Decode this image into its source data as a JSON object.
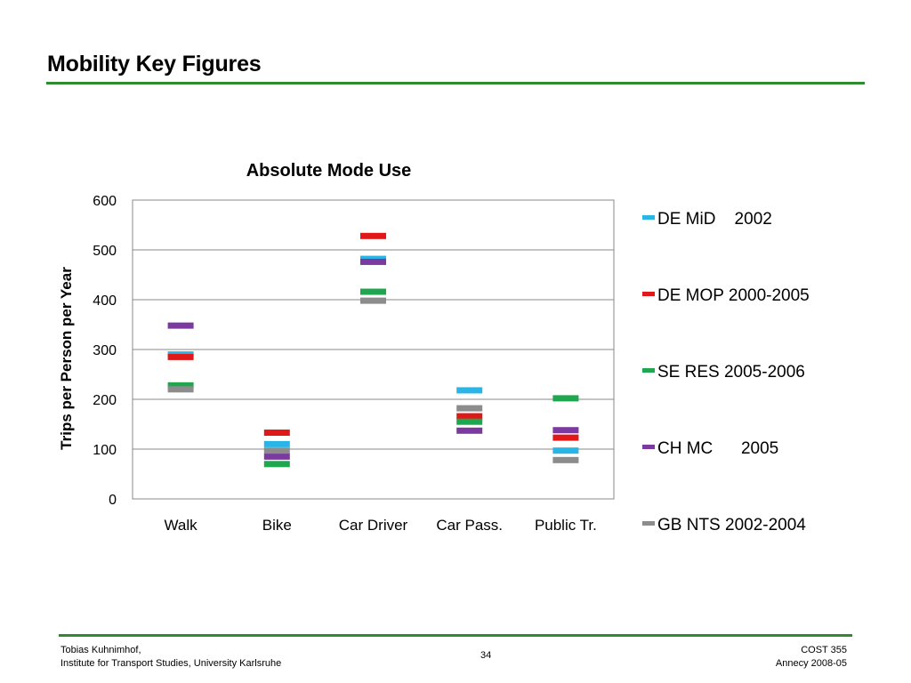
{
  "slide": {
    "title": "Mobility Key Figures",
    "footer": {
      "author": "Tobias Kuhnimhof,",
      "institute": "Institute for Transport Studies, University Karlsruhe",
      "page_number": "34",
      "project": "COST 355",
      "event": "Annecy 2008-05"
    },
    "accent_color": "#2e8b2e"
  },
  "chart_data": {
    "type": "scatter",
    "title": "Absolute Mode Use",
    "xlabel": "",
    "ylabel": "Trips per Person per Year",
    "categories": [
      "Walk",
      "Bike",
      "Car Driver",
      "Car Pass.",
      "Public Tr."
    ],
    "ylim": [
      0,
      600
    ],
    "yticks": [
      "0",
      "100",
      "200",
      "300",
      "400",
      "500",
      "600"
    ],
    "grid": true,
    "legend_position": "right",
    "marker": "dash",
    "series": [
      {
        "name": "DE MiD    2002",
        "color": "#29b6e6",
        "values": [
          290,
          110,
          482,
          218,
          97
        ]
      },
      {
        "name": "DE MOP 2000-2005",
        "color": "#e01818",
        "values": [
          285,
          133,
          528,
          166,
          123
        ]
      },
      {
        "name": "SE RES 2005-2006",
        "color": "#1fa64f",
        "values": [
          228,
          70,
          416,
          155,
          202
        ]
      },
      {
        "name": "CH MC      2005",
        "color": "#7b3aa0",
        "values": [
          348,
          85,
          476,
          137,
          138
        ]
      },
      {
        "name": "GB NTS 2002-2004",
        "color": "#8c8c8c",
        "values": [
          220,
          97,
          398,
          182,
          78
        ]
      }
    ]
  }
}
